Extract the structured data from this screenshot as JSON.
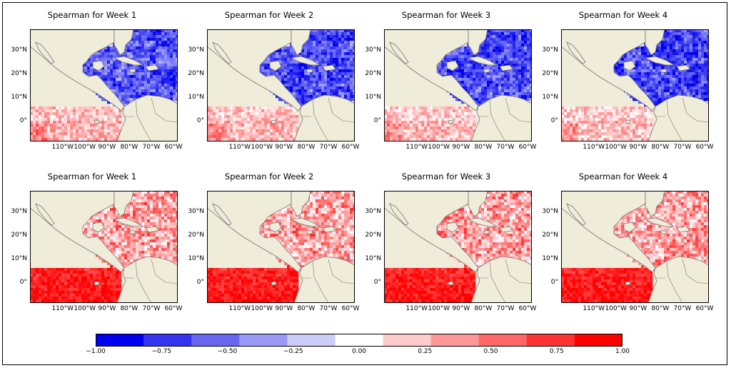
{
  "panels": [
    {
      "title": "Spearman for Week 1",
      "row": "top"
    },
    {
      "title": "Spearman for Week 2",
      "row": "top"
    },
    {
      "title": "Spearman for Week 3",
      "row": "top"
    },
    {
      "title": "Spearman for Week 4",
      "row": "top"
    },
    {
      "title": "Spearman for Week 1",
      "row": "bottom"
    },
    {
      "title": "Spearman for Week 2",
      "row": "bottom"
    },
    {
      "title": "Spearman for Week 3",
      "row": "bottom"
    },
    {
      "title": "Spearman for Week 4",
      "row": "bottom"
    }
  ],
  "x_ticks": [
    "110°W",
    "100°W",
    "90°W",
    "80°W",
    "70°W",
    "60°W"
  ],
  "y_ticks": [
    "30°N",
    "20°N",
    "10°N",
    "0°"
  ],
  "colorbar": {
    "ticks": [
      "−1.00",
      "−0.75",
      "−0.50",
      "−0.25",
      "0.00",
      "0.25",
      "0.50",
      "0.75",
      "1.00"
    ],
    "colors": [
      "#0000ee",
      "#3333f0",
      "#6666f2",
      "#9999f5",
      "#ccccf8",
      "#ffffff",
      "#ffcccc",
      "#ff9999",
      "#ff6666",
      "#ff3333",
      "#ff0000"
    ]
  },
  "colors": {
    "land": "#efecd9",
    "coast": "#777777"
  }
}
